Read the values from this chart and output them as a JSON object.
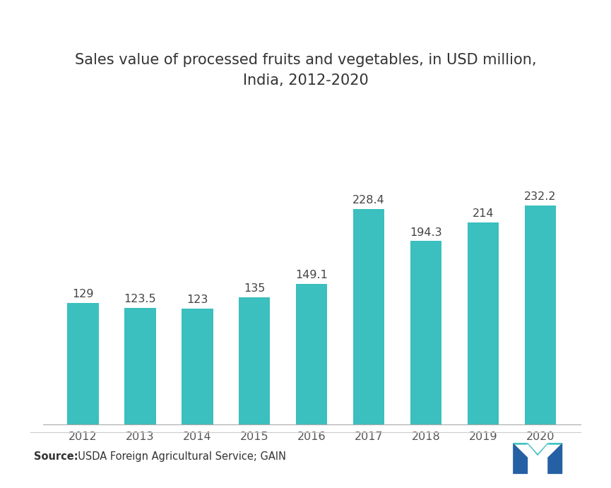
{
  "title": "Sales value of processed fruits and vegetables, in USD million,\nIndia, 2012-2020",
  "categories": [
    "2012",
    "2013",
    "2014",
    "2015",
    "2016",
    "2017",
    "2018",
    "2019",
    "2020"
  ],
  "values": [
    129,
    123.5,
    123,
    135,
    149.1,
    228.4,
    194.3,
    214,
    232.2
  ],
  "bar_color": "#3bbfbf",
  "background_color": "#ffffff",
  "label_fontsize": 11.5,
  "title_fontsize": 15,
  "tick_fontsize": 11.5,
  "source_text_bold": "Source:",
  "source_text_normal": "  USDA Foreign Agricultural Service; GAIN",
  "ylim": [
    0,
    310
  ],
  "bar_width": 0.55,
  "logo_dark_color": "#2660a4",
  "logo_light_color": "#3bbfbf"
}
